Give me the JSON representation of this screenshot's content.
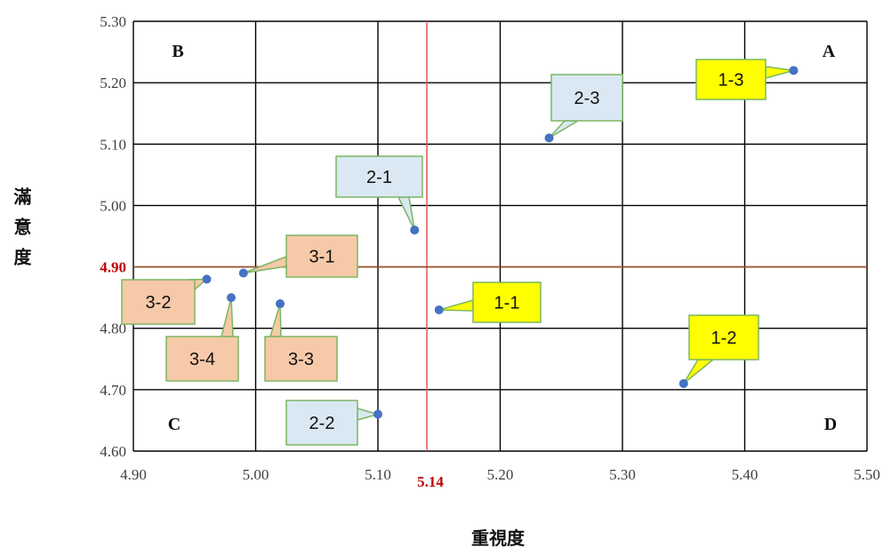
{
  "chart_data": {
    "type": "scatter",
    "xlabel": "重視度",
    "ylabel": "滿意度",
    "xlim": [
      4.9,
      5.5
    ],
    "ylim": [
      4.6,
      5.3
    ],
    "x_ticks": [
      "4.90",
      "5.00",
      "5.10",
      "5.20",
      "5.30",
      "5.40",
      "5.50"
    ],
    "y_ticks": [
      "4.60",
      "4.70",
      "4.80",
      "5.00",
      "5.10",
      "5.20",
      "5.30"
    ],
    "grid": true,
    "reference_lines": [
      {
        "axis": "x",
        "value": 5.14,
        "label": "5.14",
        "color": "#e06060"
      },
      {
        "axis": "y",
        "value": 4.9,
        "label": "4.90",
        "color": "#a0522d"
      }
    ],
    "quadrants": [
      "A",
      "B",
      "C",
      "D"
    ],
    "points": [
      {
        "label": "1-1",
        "x": 5.15,
        "y": 4.83,
        "group": "1"
      },
      {
        "label": "1-2",
        "x": 5.35,
        "y": 4.71,
        "group": "1"
      },
      {
        "label": "1-3",
        "x": 5.44,
        "y": 5.22,
        "group": "1"
      },
      {
        "label": "2-1",
        "x": 5.13,
        "y": 4.96,
        "group": "2"
      },
      {
        "label": "2-2",
        "x": 5.1,
        "y": 4.66,
        "group": "2"
      },
      {
        "label": "2-3",
        "x": 5.24,
        "y": 5.11,
        "group": "2"
      },
      {
        "label": "3-1",
        "x": 4.99,
        "y": 4.89,
        "group": "3"
      },
      {
        "label": "3-2",
        "x": 4.96,
        "y": 4.88,
        "group": "3"
      },
      {
        "label": "3-3",
        "x": 5.02,
        "y": 4.84,
        "group": "3"
      },
      {
        "label": "3-4",
        "x": 4.98,
        "y": 4.85,
        "group": "3"
      }
    ]
  },
  "colors": {
    "point": "#4472c4",
    "group1_fill": "#ffff00",
    "group2_fill": "#dae8f3",
    "group3_fill": "#f6c9a8",
    "callout_border": "#7bb661",
    "grid": "#000000",
    "ref_x": "#e06060",
    "ref_y": "#a0522d"
  }
}
